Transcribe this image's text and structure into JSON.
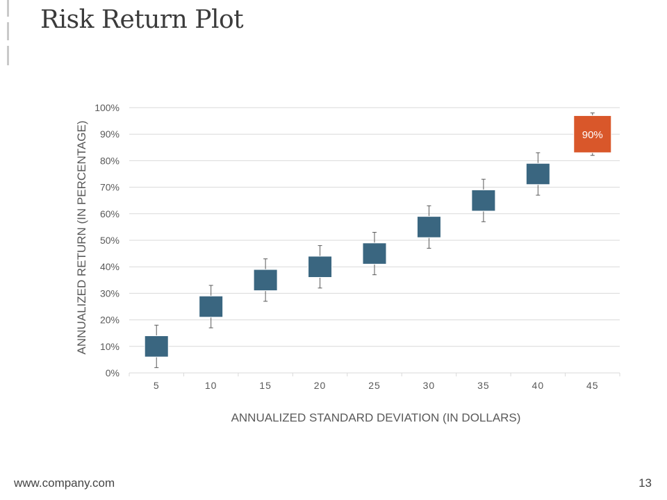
{
  "slide": {
    "title": "Risk Return Plot",
    "footer_url": "www.company.com",
    "page_number": "13"
  },
  "colors": {
    "box": "#3a6680",
    "highlight": "#d9572a",
    "grid": "#d9d9d9",
    "axis_text": "#595959",
    "whisker": "#595959"
  },
  "chart_data": {
    "type": "candlestick",
    "title": "",
    "xlabel": "ANNUALIZED STANDARD DEVIATION (IN DOLLARS)",
    "ylabel": "ANNUALIZED RETURN (IN PERCENTAGE)",
    "ylim": [
      0,
      100
    ],
    "yticks": [
      "0%",
      "10%",
      "20%",
      "30%",
      "40%",
      "50%",
      "60%",
      "70%",
      "80%",
      "90%",
      "100%"
    ],
    "categories": [
      "5",
      "10",
      "15",
      "20",
      "25",
      "30",
      "35",
      "40",
      "45"
    ],
    "high": [
      18,
      33,
      43,
      48,
      53,
      63,
      73,
      83,
      98
    ],
    "open": [
      14,
      29,
      39,
      44,
      49,
      59,
      69,
      79,
      97
    ],
    "close": [
      6,
      21,
      31,
      36,
      41,
      51,
      61,
      71,
      83
    ],
    "low": [
      2,
      17,
      27,
      32,
      37,
      47,
      57,
      67,
      82
    ],
    "highlight_index": 8,
    "highlight_label": "90%"
  }
}
